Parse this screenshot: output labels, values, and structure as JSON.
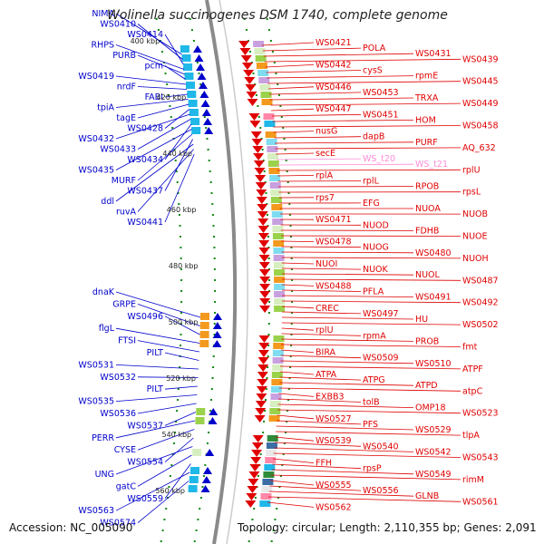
{
  "title": "Wolinella succinogenes DSM 1740, complete genome",
  "footer": {
    "accession": "Accession: NC_005090",
    "topology": "Topology: circular; Length: 2,110,355 bp; Genes: 2,091"
  },
  "colors": {
    "plus_strand": "#e00000",
    "minus_strand": "#0000cc",
    "rrna_trna": "#ff8ad8",
    "ticks": "#118811",
    "backbone": "#8a8a8a"
  },
  "scale_ticks": [
    "400 kbp",
    "420 kbp",
    "440 kbp",
    "460 kbp",
    "480 kbp",
    "500 kbp",
    "520 kbp",
    "540 kbp",
    "560 kbp"
  ],
  "left_genes": [
    "NIMA",
    "WS0410",
    "WS0414",
    "RHPS",
    "PURB",
    "pcm",
    "WS0419",
    "nrdF",
    "FABI",
    "tpiA",
    "tagE",
    "WS0428",
    "WS0432",
    "WS0433",
    "WS0434",
    "WS0435",
    "MURF",
    "WS0437",
    "ddl",
    "ruvA",
    "WS0441",
    "dnaK",
    "GRPE",
    "WS0496",
    "flgL",
    "FTSI",
    "PILT",
    "WS0531",
    "WS0532",
    "PILT",
    "WS0535",
    "WS0536",
    "WS0537",
    "PERR",
    "CYSE",
    "WS0554",
    "UNG",
    "gatC",
    "WS0559",
    "WS0563",
    "WS0574"
  ],
  "right_genes": [
    "WS0421",
    "POLA",
    "WS0431",
    "WS0439",
    "WS0442",
    "cysS",
    "rpmE",
    "WS0445",
    "WS0446",
    "WS0453",
    "TRXA",
    "WS0449",
    "WS0447",
    "WS0451",
    "HOM",
    "WS0458",
    "nusG",
    "dapB",
    "PURF",
    "AQ_632",
    "secE",
    "WS_t20",
    "WS_t21",
    "rplU",
    "rplA",
    "rplL",
    "RPOB",
    "rpsL",
    "rps7",
    "EFG",
    "NUOA",
    "NUOB",
    "WS0471",
    "NUOD",
    "FDHB",
    "NUOE",
    "WS0478",
    "NUOG",
    "WS0480",
    "NUOH",
    "NUOI",
    "NUOK",
    "NUOL",
    "WS0487",
    "WS0488",
    "PFLA",
    "WS0491",
    "WS0492",
    "CREC",
    "WS0497",
    "HU",
    "WS0502",
    "rplU",
    "rpmA",
    "PROB",
    "fmt",
    "BIRA",
    "WS0509",
    "WS0510",
    "ATPF",
    "ATPA",
    "ATPG",
    "ATPD",
    "atpC",
    "EXBB3",
    "tolB",
    "OMP18",
    "WS0523",
    "WS0527",
    "PFS",
    "WS0529",
    "tlpA",
    "WS0539",
    "WS0540",
    "WS0542",
    "WS0543",
    "FFH",
    "rpsP",
    "WS0549",
    "rimM",
    "WS0555",
    "WS0556",
    "GLNB",
    "WS0561",
    "WS0562"
  ]
}
